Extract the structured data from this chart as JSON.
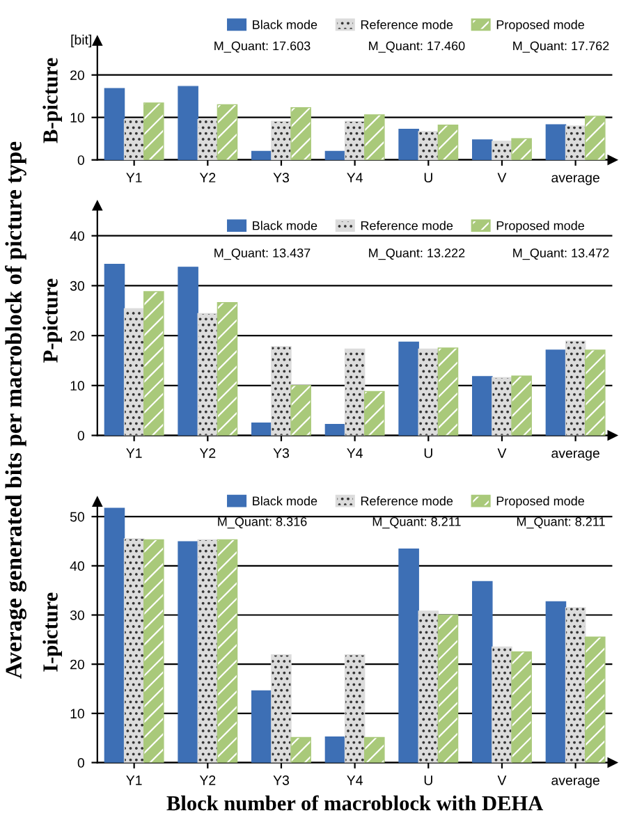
{
  "chart_data": [
    {
      "type": "bar",
      "ylabel": "B-picture",
      "categories": [
        "Y1",
        "Y2",
        "Y3",
        "Y4",
        "U",
        "V",
        "average"
      ],
      "ylim": [
        0,
        28
      ],
      "yticks": [
        0,
        10,
        20
      ],
      "grid": "y",
      "legend": "top",
      "series": [
        {
          "name": "Black mode",
          "color": "#3d6fb5",
          "values": [
            16.8,
            17.3,
            2.0,
            2.0,
            7.2,
            4.7,
            8.3
          ]
        },
        {
          "name": "Reference mode",
          "color": "#dcdcdc",
          "values": [
            9.5,
            9.5,
            9.1,
            9.1,
            6.7,
            4.4,
            8.0
          ]
        },
        {
          "name": "Proposed mode",
          "color": "#a9c97a",
          "values": [
            13.4,
            13.0,
            12.3,
            10.6,
            8.2,
            5.0,
            10.3
          ]
        }
      ],
      "annotations": [
        "M_Quant: 17.603",
        "M_Quant: 17.460",
        "M_Quant: 17.762",
        "[bit]"
      ]
    },
    {
      "type": "bar",
      "ylabel": "P-picture",
      "categories": [
        "Y1",
        "Y2",
        "Y3",
        "Y4",
        "U",
        "V",
        "average"
      ],
      "ylim": [
        0,
        46
      ],
      "yticks": [
        0,
        10,
        20,
        30,
        40
      ],
      "grid": "y",
      "legend": "top",
      "series": [
        {
          "name": "Black mode",
          "color": "#3d6fb5",
          "values": [
            34.3,
            33.7,
            2.5,
            2.2,
            18.7,
            11.8,
            17.1
          ]
        },
        {
          "name": "Reference mode",
          "color": "#dcdcdc",
          "values": [
            25.4,
            24.4,
            17.8,
            17.3,
            17.3,
            11.6,
            18.9
          ]
        },
        {
          "name": "Proposed mode",
          "color": "#a9c97a",
          "values": [
            28.8,
            26.6,
            10.0,
            8.8,
            17.5,
            11.9,
            17.1
          ]
        }
      ],
      "annotations": [
        "M_Quant: 13.437",
        "M_Quant: 13.222",
        "M_Quant: 13.472",
        "Average generated bits per macroblock of picture type"
      ]
    },
    {
      "type": "bar",
      "ylabel": "I-picture",
      "xlabel": "Block number of macroblock with DEHA",
      "categories": [
        "Y1",
        "Y2",
        "Y3",
        "Y4",
        "U",
        "V",
        "average"
      ],
      "ylim": [
        0,
        53
      ],
      "yticks": [
        0,
        10,
        20,
        30,
        40,
        50
      ],
      "grid": "y",
      "legend": "top",
      "series": [
        {
          "name": "Black mode",
          "color": "#3d6fb5",
          "values": [
            51.7,
            44.9,
            14.6,
            5.2,
            43.4,
            36.8,
            32.7
          ]
        },
        {
          "name": "Reference mode",
          "color": "#dcdcdc",
          "values": [
            45.5,
            45.3,
            21.9,
            21.9,
            30.8,
            23.5,
            31.5
          ]
        },
        {
          "name": "Proposed mode",
          "color": "#a9c97a",
          "values": [
            45.3,
            45.3,
            5.1,
            5.1,
            30.0,
            22.5,
            25.5
          ]
        }
      ],
      "annotations": [
        "M_Quant: 8.316",
        "M_Quant: 8.211",
        "M_Quant: 8.211"
      ]
    }
  ]
}
